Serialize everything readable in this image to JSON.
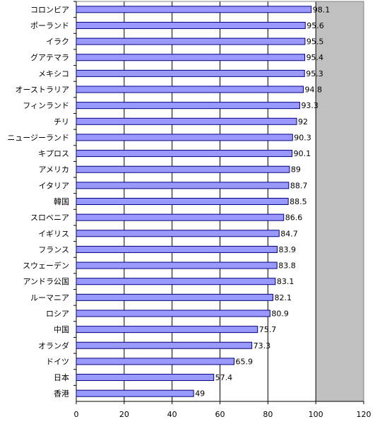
{
  "chart_data": {
    "type": "bar",
    "orientation": "horizontal",
    "categories": [
      "コロンビア",
      "ポーランド",
      "イラク",
      "グアテマラ",
      "メキシコ",
      "オーストラリア",
      "フィンランド",
      "チリ",
      "ニュージーランド",
      "キプロス",
      "アメリカ",
      "イタリア",
      "韓国",
      "スロベニア",
      "イギリス",
      "フランス",
      "スウェーデン",
      "アンドラ公国",
      "ルーマニア",
      "ロシア",
      "中国",
      "オランダ",
      "ドイツ",
      "日本",
      "香港"
    ],
    "values": [
      98.1,
      95.6,
      95.5,
      95.4,
      95.3,
      94.8,
      93.3,
      92,
      90.3,
      90.1,
      89,
      88.7,
      88.5,
      86.6,
      84.7,
      83.9,
      83.8,
      83.1,
      82.1,
      80.9,
      75.7,
      73.3,
      65.9,
      57.4,
      49
    ],
    "value_labels": [
      "98.1",
      "95.6",
      "95.5",
      "95.4",
      "95.3",
      "94.8",
      "93.3",
      "92",
      "90.3",
      "90.1",
      "89",
      "88.7",
      "88.5",
      "86.6",
      "84.7",
      "83.9",
      "83.8",
      "83.1",
      "82.1",
      "80.9",
      "75.7",
      "73.3",
      "65.9",
      "57.4",
      "49"
    ],
    "xlim": [
      0,
      120
    ],
    "xticks": [
      "0",
      "20",
      "40",
      "60",
      "80",
      "100",
      "120"
    ],
    "grid": true,
    "colors": {
      "bar_fill": "#9999ff",
      "bar_stroke": "#000080",
      "plot_background": "#c0c0c0",
      "grid": "#000000"
    }
  }
}
